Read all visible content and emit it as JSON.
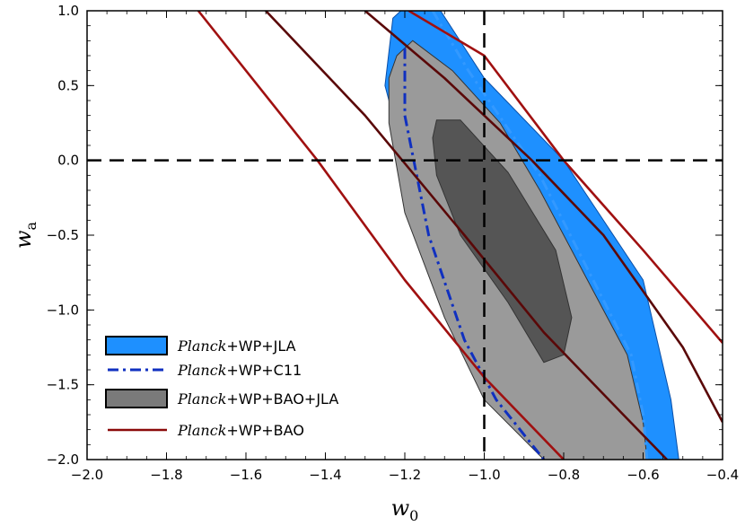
{
  "chart_data": {
    "type": "contour",
    "title": "",
    "xlabel": "w",
    "xlabel_sub": "0",
    "ylabel": "w",
    "ylabel_sub": "a",
    "xlim": [
      -2.0,
      -0.4
    ],
    "ylim": [
      -2.0,
      1.0
    ],
    "xticks": [
      -2.0,
      -1.8,
      -1.6,
      -1.4,
      -1.2,
      -1.0,
      -0.8,
      -0.6,
      -0.4
    ],
    "xtick_labels": [
      "−2.0",
      "−1.8",
      "−1.6",
      "−1.4",
      "−1.2",
      "−1.0",
      "−0.8",
      "−0.6",
      "−0.4"
    ],
    "yticks": [
      -2.0,
      -1.5,
      -1.0,
      -0.5,
      0.0,
      0.5,
      1.0
    ],
    "ytick_labels": [
      "−2.0",
      "−1.5",
      "−1.0",
      "−0.5",
      "0.0",
      "0.5",
      "1.0"
    ],
    "reference_lines": {
      "w0": -1.0,
      "wa": 0.0
    },
    "legend_position": "lower-left",
    "series": [
      {
        "name_italic": "Planck",
        "name_rest": "+WP+JLA",
        "style": "filled",
        "color": "#1e90ff",
        "edge": "#0a4fa8",
        "contour_2sigma": [
          [
            -1.21,
            1.0
          ],
          [
            -1.11,
            1.0
          ],
          [
            -1.0,
            0.55
          ],
          [
            -0.8,
            0.0
          ],
          [
            -0.6,
            -0.8
          ],
          [
            -0.53,
            -1.6
          ],
          [
            -0.51,
            -2.0
          ],
          [
            -0.79,
            -2.0
          ],
          [
            -0.97,
            -1.6
          ],
          [
            -1.17,
            -0.3
          ],
          [
            -1.25,
            0.5
          ],
          [
            -1.23,
            0.95
          ]
        ]
      },
      {
        "name_italic": "Planck",
        "name_rest": "+WP+C11",
        "style": "dashdot",
        "color": "#1030c0",
        "contour_2sigma": [
          [
            -1.13,
            1.0
          ],
          [
            -1.04,
            0.6
          ],
          [
            -0.86,
            -0.1
          ],
          [
            -0.63,
            -1.3
          ],
          [
            -0.6,
            -1.7
          ],
          [
            -0.59,
            -2.0
          ]
        ],
        "contour_2sigma_inner": [
          [
            -1.2,
            0.75
          ],
          [
            -1.2,
            0.3
          ],
          [
            -1.14,
            -0.5
          ],
          [
            -1.05,
            -1.2
          ],
          [
            -0.97,
            -1.6
          ],
          [
            -0.85,
            -2.0
          ]
        ]
      },
      {
        "name_italic": "Planck",
        "name_rest": "+WP+BAO+JLA",
        "style": "filled",
        "color": "#7a7a7a",
        "edge": "#333333",
        "contour_1sigma": [
          [
            -1.12,
            0.27
          ],
          [
            -1.06,
            0.27
          ],
          [
            -0.94,
            -0.08
          ],
          [
            -0.82,
            -0.6
          ],
          [
            -0.78,
            -1.05
          ],
          [
            -0.8,
            -1.3
          ],
          [
            -0.85,
            -1.35
          ],
          [
            -0.94,
            -0.95
          ],
          [
            -1.06,
            -0.5
          ],
          [
            -1.12,
            -0.1
          ],
          [
            -1.13,
            0.15
          ]
        ],
        "contour_2sigma": [
          [
            -1.22,
            0.7
          ],
          [
            -1.18,
            0.8
          ],
          [
            -1.08,
            0.6
          ],
          [
            -0.96,
            0.25
          ],
          [
            -0.86,
            -0.2
          ],
          [
            -0.74,
            -0.8
          ],
          [
            -0.64,
            -1.3
          ],
          [
            -0.6,
            -1.75
          ],
          [
            -0.59,
            -2.0
          ],
          [
            -0.85,
            -2.0
          ],
          [
            -1.0,
            -1.6
          ],
          [
            -1.1,
            -1.05
          ],
          [
            -1.2,
            -0.35
          ],
          [
            -1.24,
            0.25
          ],
          [
            -1.24,
            0.55
          ]
        ]
      },
      {
        "name_italic": "Planck",
        "name_rest": "+WP+BAO",
        "style": "line",
        "color": "#8b0a0a",
        "contour_2sigma_left": [
          [
            -1.72,
            1.0
          ],
          [
            -1.42,
            0.0
          ],
          [
            -1.2,
            -0.8
          ],
          [
            -1.0,
            -1.45
          ],
          [
            -0.8,
            -2.0
          ]
        ],
        "contour_2sigma_right": [
          [
            -1.19,
            1.0
          ],
          [
            -1.0,
            0.7
          ],
          [
            -0.8,
            0.0
          ],
          [
            -0.6,
            -0.6
          ],
          [
            -0.4,
            -1.22
          ]
        ],
        "contour_1sigma_left": [
          [
            -1.55,
            1.0
          ],
          [
            -1.3,
            0.3
          ],
          [
            -1.05,
            -0.5
          ],
          [
            -0.85,
            -1.15
          ],
          [
            -0.65,
            -1.7
          ],
          [
            -0.54,
            -2.0
          ]
        ],
        "contour_1sigma_right": [
          [
            -1.3,
            1.0
          ],
          [
            -1.1,
            0.55
          ],
          [
            -0.88,
            0.0
          ],
          [
            -0.7,
            -0.5
          ],
          [
            -0.5,
            -1.25
          ],
          [
            -0.4,
            -1.75
          ]
        ]
      }
    ]
  }
}
